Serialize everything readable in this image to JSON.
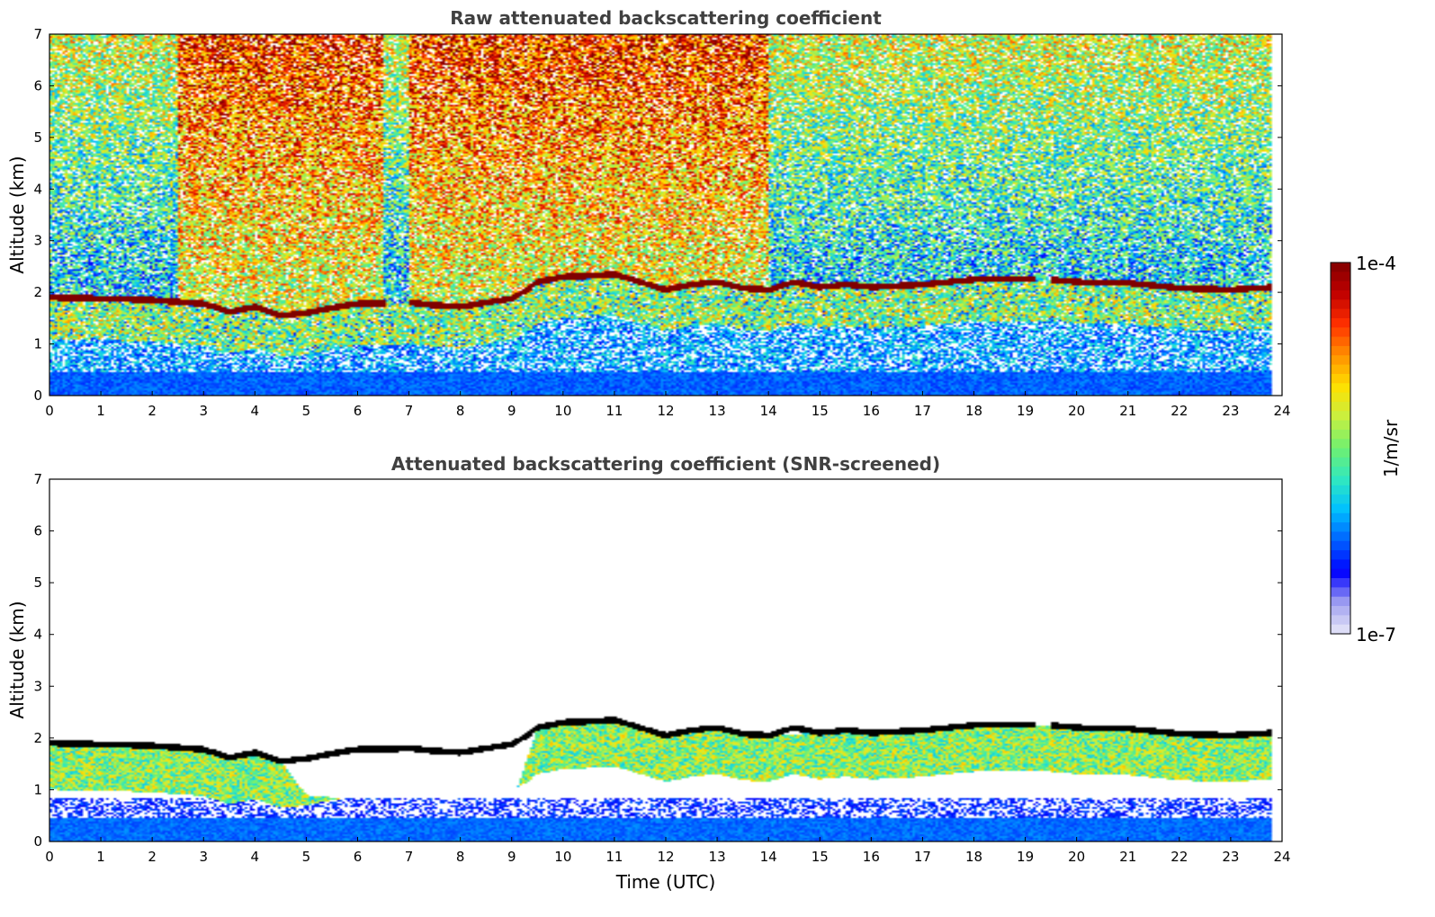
{
  "chart_data": [
    {
      "type": "heatmap",
      "title": "Raw attenuated backscattering coefficient",
      "xlabel": "",
      "ylabel": "Altitude (km)",
      "xlim": [
        0,
        24
      ],
      "ylim": [
        0,
        7
      ],
      "x_ticks": [
        "0",
        "1",
        "2",
        "3",
        "4",
        "5",
        "6",
        "7",
        "8",
        "9",
        "10",
        "11",
        "12",
        "13",
        "14",
        "15",
        "16",
        "17",
        "18",
        "19",
        "20",
        "21",
        "22",
        "23",
        "24"
      ],
      "y_ticks": [
        "0",
        "1",
        "2",
        "3",
        "4",
        "5",
        "6",
        "7"
      ],
      "data_end_time": 23.8,
      "data_gaps": [
        [
          6.55,
          7.0
        ],
        [
          19.2,
          19.5
        ]
      ],
      "cloud_base_km": [
        [
          0.0,
          1.9
        ],
        [
          1.0,
          1.88
        ],
        [
          2.0,
          1.85
        ],
        [
          3.0,
          1.78
        ],
        [
          3.5,
          1.62
        ],
        [
          4.0,
          1.72
        ],
        [
          4.5,
          1.55
        ],
        [
          5.0,
          1.6
        ],
        [
          5.5,
          1.7
        ],
        [
          6.0,
          1.78
        ],
        [
          6.5,
          1.78
        ],
        [
          7.0,
          1.8
        ],
        [
          7.5,
          1.75
        ],
        [
          8.0,
          1.72
        ],
        [
          8.5,
          1.8
        ],
        [
          9.0,
          1.88
        ],
        [
          9.3,
          2.05
        ],
        [
          9.5,
          2.2
        ],
        [
          10.0,
          2.3
        ],
        [
          10.5,
          2.32
        ],
        [
          11.0,
          2.35
        ],
        [
          11.5,
          2.2
        ],
        [
          12.0,
          2.05
        ],
        [
          12.5,
          2.15
        ],
        [
          13.0,
          2.2
        ],
        [
          13.5,
          2.08
        ],
        [
          14.0,
          2.05
        ],
        [
          14.5,
          2.2
        ],
        [
          15.0,
          2.1
        ],
        [
          15.5,
          2.15
        ],
        [
          16.0,
          2.1
        ],
        [
          17.0,
          2.15
        ],
        [
          18.0,
          2.25
        ],
        [
          19.0,
          2.25
        ],
        [
          19.5,
          2.25
        ],
        [
          20.0,
          2.2
        ],
        [
          21.0,
          2.18
        ],
        [
          22.0,
          2.08
        ],
        [
          23.0,
          2.05
        ],
        [
          23.8,
          2.1
        ]
      ],
      "noise_level_note_free": true
    },
    {
      "type": "heatmap",
      "title": "Attenuated backscattering coefficient (SNR-screened)",
      "xlabel": "Time (UTC)",
      "ylabel": "Altitude (km)",
      "xlim": [
        0,
        24
      ],
      "ylim": [
        0,
        7
      ],
      "x_ticks": [
        "0",
        "1",
        "2",
        "3",
        "4",
        "5",
        "6",
        "7",
        "8",
        "9",
        "10",
        "11",
        "12",
        "13",
        "14",
        "15",
        "16",
        "17",
        "18",
        "19",
        "20",
        "21",
        "22",
        "23",
        "24"
      ],
      "y_ticks": [
        "0",
        "1",
        "2",
        "3",
        "4",
        "5",
        "6",
        "7"
      ],
      "data_end_time": 23.8,
      "data_gaps": [
        [
          19.2,
          19.5
        ]
      ],
      "screened_layer_top_km": [
        [
          0.0,
          1.9
        ],
        [
          1.0,
          1.88
        ],
        [
          2.0,
          1.85
        ],
        [
          3.0,
          1.78
        ],
        [
          4.0,
          1.72
        ],
        [
          4.5,
          1.55
        ],
        [
          5.0,
          0.9
        ],
        [
          6.0,
          0.8
        ],
        [
          6.5,
          0.7
        ],
        [
          7.0,
          0.8
        ],
        [
          8.0,
          0.8
        ],
        [
          9.0,
          0.7
        ],
        [
          9.5,
          2.2
        ],
        [
          10.0,
          2.3
        ],
        [
          11.0,
          2.35
        ],
        [
          12.0,
          2.05
        ],
        [
          13.0,
          2.2
        ],
        [
          14.0,
          2.05
        ],
        [
          15.0,
          2.1
        ],
        [
          16.0,
          2.1
        ],
        [
          17.0,
          2.15
        ],
        [
          18.0,
          2.25
        ],
        [
          19.0,
          2.25
        ],
        [
          20.0,
          2.2
        ],
        [
          21.0,
          2.18
        ],
        [
          22.0,
          2.08
        ],
        [
          23.0,
          2.05
        ],
        [
          23.8,
          2.1
        ]
      ]
    }
  ],
  "colorbar": {
    "label": "1/m/sr",
    "max_label": "1e-4",
    "min_label": "1e-7",
    "scale": "log",
    "range": [
      1e-07,
      0.0001
    ],
    "colormap": [
      "#e8e8f8",
      "#a0a0f0",
      "#0000ff",
      "#0060ff",
      "#00c0ff",
      "#30e8c0",
      "#70f070",
      "#c8f040",
      "#ffe000",
      "#ff9000",
      "#ff3000",
      "#c00000",
      "#800000"
    ]
  }
}
